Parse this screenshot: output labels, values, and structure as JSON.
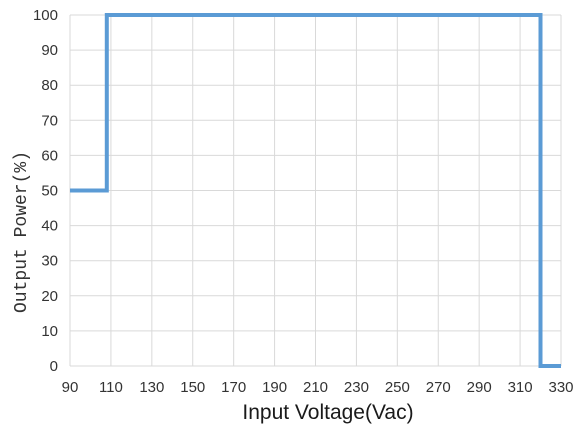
{
  "chart_data": {
    "type": "line",
    "title": "",
    "xlabel": "Input Voltage(Vac)",
    "ylabel": "Output Power(%)",
    "xlim": [
      90,
      330
    ],
    "ylim": [
      0,
      100
    ],
    "x_ticks": [
      "90",
      "110",
      "130",
      "150",
      "170",
      "190",
      "210",
      "230",
      "250",
      "270",
      "290",
      "310",
      "330"
    ],
    "y_ticks": [
      "0",
      "10",
      "20",
      "30",
      "40",
      "50",
      "60",
      "70",
      "80",
      "90",
      "100"
    ],
    "grid": true,
    "line_color": "#5b9bd5",
    "series": [
      {
        "step": true,
        "x": [
          90,
          108,
          108,
          320,
          320,
          330
        ],
        "y": [
          50,
          50,
          100,
          100,
          0,
          0
        ]
      }
    ]
  }
}
